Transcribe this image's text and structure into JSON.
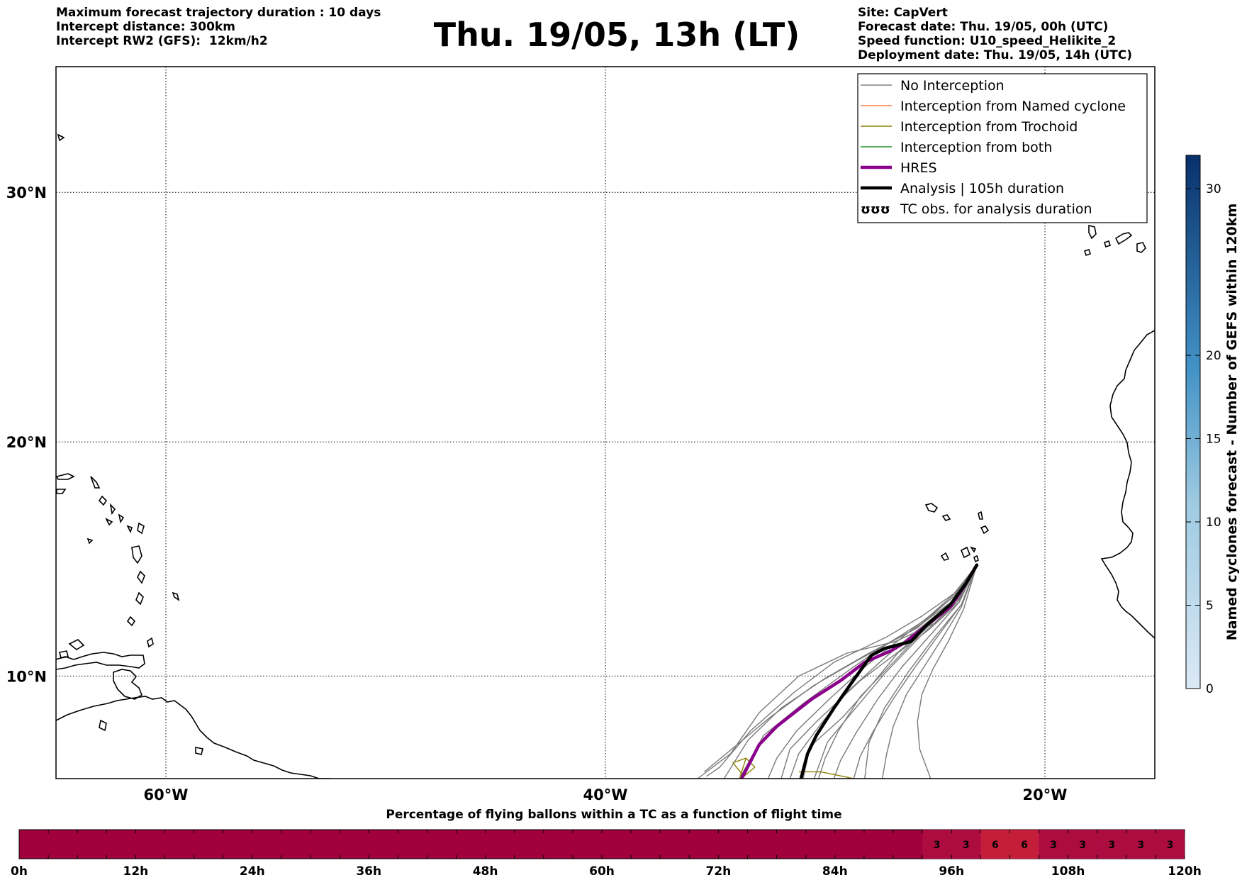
{
  "header": {
    "left": [
      "Maximum forecast trajectory duration : 10 days",
      "Intercept distance: 300km",
      "Intercept RW2 (GFS):  12km/h2"
    ],
    "title": "Thu. 19/05, 13h (LT)",
    "right": [
      "Site: CapVert",
      "Forecast date: Thu. 19/05, 00h (UTC)",
      "Speed function: U10_speed_Helikite_2",
      "Deployment date: Thu. 19/05, 14h (UTC)"
    ]
  },
  "legend": [
    {
      "label": "No Interception",
      "color": "#808080",
      "style": "thin"
    },
    {
      "label": "Interception from Named cyclone",
      "color": "#ff7f50",
      "style": "thin"
    },
    {
      "label": "Interception from Trochoid",
      "color": "#8b8000",
      "style": "thin"
    },
    {
      "label": "Interception from both",
      "color": "#228b22",
      "style": "thin"
    },
    {
      "label": "HRES",
      "color": "#8b008b",
      "style": "thick"
    },
    {
      "label": "Analysis | 105h duration",
      "color": "#000000",
      "style": "thick"
    },
    {
      "label": "TC obs. for analysis duration",
      "color": "#000000",
      "style": "symbol",
      "symbol": "ʊʊʊ"
    }
  ],
  "map_axes": {
    "x_ticks": [
      {
        "lon": -60,
        "label": "60°W"
      },
      {
        "lon": -40,
        "label": "40°W"
      },
      {
        "lon": -20,
        "label": "20°W"
      }
    ],
    "y_ticks": [
      {
        "lat": 30,
        "label": "30°N"
      },
      {
        "lat": 20,
        "label": "20°N"
      },
      {
        "lat": 10,
        "label": "10°N"
      }
    ],
    "lon_range": [
      -65,
      -15
    ],
    "lat_range": [
      5.5,
      34.7
    ]
  },
  "colorbar": {
    "label": "Named cyclones forecast - Number of GEFS within 120km",
    "ticks": [
      0,
      5,
      10,
      15,
      20,
      30
    ],
    "range": [
      0,
      32
    ]
  },
  "bottom_bar": {
    "title": "Percentage of flying ballons within a TC as a function of flight time",
    "tick_labels": [
      "0h",
      "12h",
      "24h",
      "36h",
      "48h",
      "60h",
      "72h",
      "84h",
      "96h",
      "108h",
      "120h"
    ],
    "cell_hours": 3,
    "base_color": "#a0003c",
    "cells": [
      {
        "start_h": 93,
        "value": "3"
      },
      {
        "start_h": 96,
        "value": "3"
      },
      {
        "start_h": 99,
        "value": "6"
      },
      {
        "start_h": 102,
        "value": "6"
      },
      {
        "start_h": 105,
        "value": "3"
      },
      {
        "start_h": 108,
        "value": "3"
      },
      {
        "start_h": 111,
        "value": "3"
      },
      {
        "start_h": 114,
        "value": "3"
      },
      {
        "start_h": 117,
        "value": "3"
      }
    ]
  },
  "chart_data": {
    "type": "line",
    "title": "Thu. 19/05, 13h (LT)",
    "xlabel": "",
    "ylabel": "",
    "series": [
      {
        "name": "HRES",
        "points": [
          [
            -23.1,
            14.8
          ],
          [
            -23.6,
            14.0
          ],
          [
            -24.3,
            13.0
          ],
          [
            -25.4,
            12.2
          ],
          [
            -26.3,
            11.5
          ],
          [
            -27.0,
            11.1
          ],
          [
            -28.2,
            10.6
          ],
          [
            -29.3,
            9.8
          ],
          [
            -30.6,
            9.0
          ],
          [
            -32.2,
            7.8
          ],
          [
            -33.0,
            7.0
          ],
          [
            -33.8,
            5.5
          ]
        ]
      },
      {
        "name": "Analysis | 105h duration",
        "points": [
          [
            -23.1,
            14.8
          ],
          [
            -23.6,
            14.0
          ],
          [
            -24.3,
            13.1
          ],
          [
            -25.4,
            12.2
          ],
          [
            -26.1,
            11.5
          ],
          [
            -27.3,
            11.2
          ],
          [
            -27.9,
            10.9
          ],
          [
            -28.8,
            9.7
          ],
          [
            -29.6,
            8.6
          ],
          [
            -30.4,
            7.4
          ],
          [
            -30.8,
            6.6
          ],
          [
            -31.1,
            5.5
          ]
        ]
      }
    ],
    "no_interception_tracks": [
      [
        [
          -23.1,
          14.8
        ],
        [
          -24.0,
          13.4
        ],
        [
          -26.0,
          12.0
        ],
        [
          -28.5,
          10.7
        ],
        [
          -30.5,
          9.6
        ],
        [
          -32.5,
          8.2
        ],
        [
          -34.0,
          7.0
        ],
        [
          -35.5,
          5.8
        ]
      ],
      [
        [
          -23.1,
          14.8
        ],
        [
          -24.1,
          13.5
        ],
        [
          -25.8,
          12.1
        ],
        [
          -28.0,
          11.0
        ],
        [
          -30.0,
          9.9
        ],
        [
          -32.0,
          8.6
        ],
        [
          -33.5,
          7.2
        ],
        [
          -34.6,
          5.5
        ]
      ],
      [
        [
          -23.1,
          14.8
        ],
        [
          -24.2,
          13.5
        ],
        [
          -25.5,
          12.4
        ],
        [
          -27.5,
          11.2
        ],
        [
          -29.0,
          10.2
        ],
        [
          -31.0,
          8.8
        ],
        [
          -32.8,
          7.4
        ],
        [
          -33.9,
          5.5
        ]
      ],
      [
        [
          -23.1,
          14.8
        ],
        [
          -24.2,
          13.4
        ],
        [
          -26.2,
          11.9
        ],
        [
          -28.2,
          10.4
        ],
        [
          -29.8,
          9.0
        ],
        [
          -31.3,
          7.6
        ],
        [
          -32.2,
          6.4
        ],
        [
          -32.6,
          5.5
        ]
      ],
      [
        [
          -23.1,
          14.8
        ],
        [
          -24.1,
          13.3
        ],
        [
          -25.8,
          12.0
        ],
        [
          -27.4,
          10.7
        ],
        [
          -29.0,
          9.3
        ],
        [
          -30.2,
          7.9
        ],
        [
          -31.2,
          6.6
        ],
        [
          -31.6,
          5.5
        ]
      ],
      [
        [
          -23.1,
          14.8
        ],
        [
          -24.0,
          13.3
        ],
        [
          -25.6,
          11.9
        ],
        [
          -27.0,
          10.5
        ],
        [
          -28.4,
          9.1
        ],
        [
          -29.4,
          7.6
        ],
        [
          -30.0,
          6.4
        ],
        [
          -30.3,
          5.5
        ]
      ],
      [
        [
          -23.1,
          14.8
        ],
        [
          -23.9,
          13.2
        ],
        [
          -25.2,
          11.8
        ],
        [
          -26.5,
          10.4
        ],
        [
          -27.6,
          9.0
        ],
        [
          -28.6,
          7.5
        ],
        [
          -29.3,
          6.3
        ],
        [
          -29.6,
          5.5
        ]
      ],
      [
        [
          -23.1,
          14.8
        ],
        [
          -23.8,
          13.1
        ],
        [
          -24.9,
          11.7
        ],
        [
          -25.9,
          10.4
        ],
        [
          -26.9,
          9.0
        ],
        [
          -27.8,
          7.6
        ],
        [
          -28.4,
          6.5
        ],
        [
          -28.7,
          5.5
        ]
      ],
      [
        [
          -23.1,
          14.8
        ],
        [
          -23.8,
          13.0
        ],
        [
          -24.7,
          11.6
        ],
        [
          -25.5,
          10.4
        ],
        [
          -26.3,
          9.2
        ],
        [
          -26.9,
          7.8
        ],
        [
          -27.2,
          6.6
        ],
        [
          -27.4,
          5.5
        ]
      ],
      [
        [
          -23.1,
          14.8
        ],
        [
          -23.7,
          12.9
        ],
        [
          -24.4,
          11.5
        ],
        [
          -25.1,
          10.3
        ],
        [
          -25.6,
          9.2
        ],
        [
          -25.8,
          8.0
        ],
        [
          -25.7,
          6.8
        ],
        [
          -25.2,
          5.5
        ]
      ],
      [
        [
          -23.1,
          14.8
        ],
        [
          -23.9,
          13.3
        ],
        [
          -25.0,
          12.3
        ],
        [
          -26.8,
          11.5
        ],
        [
          -29.0,
          11.0
        ],
        [
          -31.2,
          10.0
        ],
        [
          -33.0,
          8.4
        ],
        [
          -34.3,
          6.6
        ],
        [
          -35.8,
          5.5
        ]
      ],
      [
        [
          -23.1,
          14.8
        ],
        [
          -24.1,
          13.6
        ],
        [
          -25.6,
          12.6
        ],
        [
          -27.2,
          11.7
        ],
        [
          -29.6,
          10.6
        ],
        [
          -31.4,
          9.3
        ],
        [
          -33.4,
          7.6
        ],
        [
          -34.8,
          6.0
        ],
        [
          -35.4,
          5.6
        ]
      ],
      [
        [
          -23.1,
          14.8
        ],
        [
          -24.0,
          13.3
        ],
        [
          -25.4,
          12.1
        ],
        [
          -26.6,
          11.1
        ],
        [
          -28.4,
          9.8
        ],
        [
          -30.4,
          8.0
        ],
        [
          -31.6,
          6.8
        ],
        [
          -32.0,
          5.5
        ]
      ],
      [
        [
          -23.1,
          14.8
        ],
        [
          -23.9,
          13.2
        ],
        [
          -25.3,
          12.0
        ],
        [
          -26.7,
          11.0
        ],
        [
          -27.9,
          9.6
        ],
        [
          -29.2,
          8.2
        ],
        [
          -30.7,
          6.9
        ],
        [
          -31.0,
          5.5
        ]
      ],
      [
        [
          -23.1,
          14.8
        ],
        [
          -24.0,
          13.2
        ],
        [
          -25.6,
          11.8
        ],
        [
          -27.3,
          10.1
        ],
        [
          -28.7,
          8.5
        ],
        [
          -29.9,
          7.1
        ],
        [
          -30.5,
          5.5
        ]
      ],
      [
        [
          -23.1,
          14.8
        ],
        [
          -23.8,
          13.1
        ],
        [
          -25.1,
          11.6
        ],
        [
          -26.2,
          10.2
        ],
        [
          -27.3,
          8.6
        ],
        [
          -28.0,
          7.1
        ],
        [
          -28.2,
          5.5
        ]
      ]
    ],
    "trochoid_tracks": [
      [
        [
          -33.6,
          6.4
        ],
        [
          -33.2,
          6.0
        ],
        [
          -33.7,
          5.6
        ],
        [
          -34.2,
          6.2
        ],
        [
          -33.6,
          6.4
        ],
        [
          -33.9,
          5.5
        ]
      ],
      [
        [
          -31.2,
          5.8
        ],
        [
          -30.2,
          5.8
        ],
        [
          -29.2,
          5.6
        ],
        [
          -28.7,
          5.5
        ]
      ]
    ]
  }
}
